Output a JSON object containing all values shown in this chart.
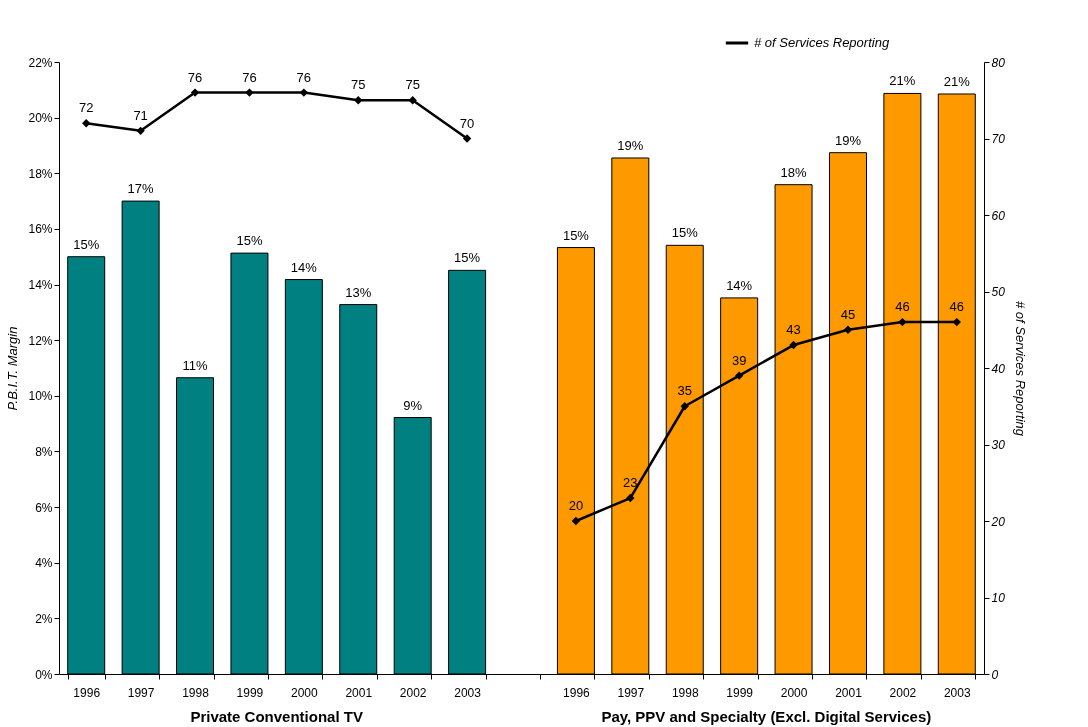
{
  "chart_data": {
    "type": "bar",
    "ylabel": "P.B.I.T. Margin",
    "y2label": "# of Services Reporting",
    "categories": [
      "1996",
      "1997",
      "1998",
      "1999",
      "2000",
      "2001",
      "2002",
      "2003",
      null,
      "1996",
      "1997",
      "1998",
      "1999",
      "2000",
      "2001",
      "2002",
      "2003"
    ],
    "series": [
      {
        "colors": [
          "#008080",
          "#008080",
          "#008080",
          "#008080",
          "#008080",
          "#008080",
          "#008080",
          "#008080",
          null,
          "#ff9900",
          "#ff9900",
          "#ff9900",
          "#ff9900",
          "#ff9900",
          "#ff9900",
          "#ff9900",
          "#ff9900"
        ],
        "values": [
          15.0,
          17.0,
          10.65,
          15.13,
          14.18,
          13.28,
          9.22,
          14.51,
          null,
          15.33,
          18.55,
          15.41,
          13.52,
          17.59,
          18.74,
          20.87,
          20.85
        ],
        "value_labels": [
          "15%",
          "17%",
          "11%",
          "15%",
          "14%",
          "13%",
          "9%",
          "15%",
          null,
          "15%",
          "19%",
          "15%",
          "14%",
          "18%",
          "19%",
          "21%",
          "21%"
        ]
      },
      {
        "type": "line",
        "name": "# of Services Reporting",
        "color": "#000000",
        "axis": "y2",
        "marker": "diamond",
        "values": [
          72,
          71,
          76,
          76,
          76,
          75,
          75,
          70,
          null,
          20,
          23,
          35,
          39,
          43,
          45,
          46,
          46
        ],
        "value_labels": [
          "72",
          "71",
          "76",
          "76",
          "76",
          "75",
          "75",
          "70",
          null,
          "20",
          "23",
          "35",
          "39",
          "43",
          "45",
          "46",
          "46"
        ]
      }
    ],
    "ylim": [
      0,
      22
    ],
    "yticks": [
      {
        "value": 0,
        "label": "0%"
      },
      {
        "value": 2,
        "label": "2%"
      },
      {
        "value": 4,
        "label": "4%"
      },
      {
        "value": 6,
        "label": "6%"
      },
      {
        "value": 8,
        "label": "8%"
      },
      {
        "value": 10,
        "label": "10%"
      },
      {
        "value": 12,
        "label": "12%"
      },
      {
        "value": 14,
        "label": "14%"
      },
      {
        "value": 16,
        "label": "16%"
      },
      {
        "value": 18,
        "label": "18%"
      },
      {
        "value": 20,
        "label": "20%"
      },
      {
        "value": 22,
        "label": "22%"
      }
    ],
    "y2lim": [
      0,
      80
    ],
    "y2ticks": [
      0,
      10,
      20,
      30,
      40,
      50,
      60,
      70,
      80
    ],
    "annotations": [
      "Private Conventional TV",
      "Pay, PPV and Specialty (Excl. Digital Services)"
    ],
    "grid": false,
    "legend": "top right"
  }
}
